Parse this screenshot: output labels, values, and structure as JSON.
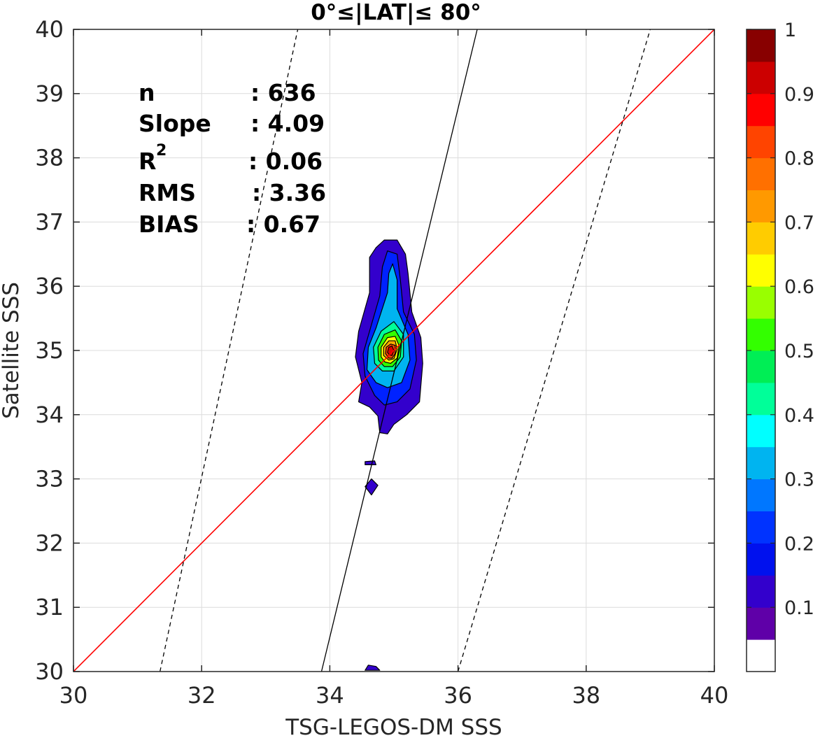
{
  "chart_data": {
    "type": "contour",
    "title": "0°≤|LAT|≤ 80°",
    "xlabel": "TSG-LEGOS-DM SSS",
    "ylabel": "Satellite SSS",
    "xlim": [
      30,
      40
    ],
    "ylim": [
      30,
      40
    ],
    "xticks": [
      "30",
      "32",
      "34",
      "36",
      "38",
      "40"
    ],
    "yticks": [
      "30",
      "31",
      "32",
      "33",
      "34",
      "35",
      "36",
      "37",
      "38",
      "39",
      "40"
    ],
    "grid": true,
    "stats": [
      {
        "label": "n",
        "value": ": 636"
      },
      {
        "label": "Slope",
        "value": ": 4.09"
      },
      {
        "label": "R",
        "sup": "2",
        "value": ": 0.06"
      },
      {
        "label": "RMS",
        "value": ": 3.36"
      },
      {
        "label": "BIAS",
        "value": ": 0.67"
      }
    ],
    "lines": [
      {
        "name": "1:1",
        "color": "#ff0000",
        "style": "solid",
        "points": [
          [
            30,
            30
          ],
          [
            40,
            40
          ]
        ]
      },
      {
        "name": "regression fit",
        "color": "#000000",
        "style": "solid",
        "points": [
          [
            33.87,
            30
          ],
          [
            36.3,
            40
          ]
        ]
      },
      {
        "name": "upper bound",
        "color": "#000000",
        "style": "dashed",
        "points": [
          [
            31.35,
            30
          ],
          [
            33.5,
            40
          ]
        ]
      },
      {
        "name": "lower bound",
        "color": "#000000",
        "style": "dashed",
        "points": [
          [
            36.0,
            30
          ],
          [
            39.0,
            40
          ]
        ]
      }
    ],
    "density_contours": [
      {
        "level": 0.1,
        "color": "#3300cc",
        "points": [
          [
            34.45,
            34.2
          ],
          [
            34.5,
            34.5
          ],
          [
            34.4,
            34.9
          ],
          [
            34.45,
            35.3
          ],
          [
            34.62,
            35.9
          ],
          [
            34.62,
            36.45
          ],
          [
            34.72,
            36.6
          ],
          [
            34.85,
            36.72
          ],
          [
            35.05,
            36.72
          ],
          [
            35.18,
            36.5
          ],
          [
            35.22,
            36.2
          ],
          [
            35.28,
            35.6
          ],
          [
            35.42,
            35.2
          ],
          [
            35.45,
            34.8
          ],
          [
            35.4,
            34.2
          ],
          [
            35.2,
            34.0
          ],
          [
            35.0,
            33.85
          ],
          [
            34.9,
            33.7
          ],
          [
            34.78,
            33.72
          ],
          [
            34.75,
            33.98
          ],
          [
            34.62,
            34.12
          ]
        ]
      },
      {
        "level": 0.1,
        "color": "#3300cc",
        "points": [
          [
            34.55,
            33.22
          ],
          [
            34.72,
            33.22
          ],
          [
            34.7,
            33.28
          ],
          [
            34.55,
            33.27
          ]
        ]
      },
      {
        "level": 0.1,
        "color": "#3300cc",
        "points": [
          [
            34.55,
            32.88
          ],
          [
            34.65,
            33.0
          ],
          [
            34.75,
            32.9
          ],
          [
            34.65,
            32.75
          ]
        ]
      },
      {
        "level": 0.1,
        "color": "#3300cc",
        "points": [
          [
            34.55,
            30.02
          ],
          [
            34.6,
            30.1
          ],
          [
            34.72,
            30.08
          ],
          [
            34.78,
            30.02
          ]
        ]
      },
      {
        "level": 0.2,
        "color": "#0022ff",
        "points": [
          [
            34.55,
            34.6
          ],
          [
            34.52,
            34.95
          ],
          [
            34.62,
            35.3
          ],
          [
            34.78,
            35.85
          ],
          [
            34.82,
            36.3
          ],
          [
            34.9,
            36.55
          ],
          [
            35.05,
            36.5
          ],
          [
            35.1,
            36.1
          ],
          [
            35.15,
            35.6
          ],
          [
            35.32,
            35.25
          ],
          [
            35.35,
            34.85
          ],
          [
            35.25,
            34.4
          ],
          [
            35.05,
            34.2
          ],
          [
            34.85,
            34.15
          ],
          [
            34.7,
            34.3
          ]
        ]
      },
      {
        "level": 0.3,
        "color": "#00b4f0",
        "points": [
          [
            34.58,
            34.7
          ],
          [
            34.6,
            35.05
          ],
          [
            34.72,
            35.35
          ],
          [
            34.9,
            35.9
          ],
          [
            34.92,
            36.2
          ],
          [
            34.98,
            36.35
          ],
          [
            35.05,
            36.1
          ],
          [
            35.05,
            35.65
          ],
          [
            35.22,
            35.25
          ],
          [
            35.25,
            34.85
          ],
          [
            35.12,
            34.5
          ],
          [
            34.9,
            34.42
          ],
          [
            34.72,
            34.5
          ]
        ]
      },
      {
        "level": 0.4,
        "color": "#00ff99",
        "points": [
          [
            34.7,
            34.8
          ],
          [
            34.68,
            35.05
          ],
          [
            34.8,
            35.3
          ],
          [
            35.0,
            35.45
          ],
          [
            35.15,
            35.25
          ],
          [
            35.15,
            34.9
          ],
          [
            35.0,
            34.68
          ],
          [
            34.82,
            34.68
          ]
        ]
      },
      {
        "level": 0.5,
        "color": "#33ff00",
        "points": [
          [
            34.76,
            34.85
          ],
          [
            34.75,
            35.05
          ],
          [
            34.85,
            35.25
          ],
          [
            35.02,
            35.32
          ],
          [
            35.12,
            35.15
          ],
          [
            35.1,
            34.9
          ],
          [
            34.98,
            34.75
          ],
          [
            34.85,
            34.75
          ]
        ]
      },
      {
        "level": 0.6,
        "color": "#ffff00",
        "points": [
          [
            34.8,
            34.9
          ],
          [
            34.8,
            35.05
          ],
          [
            34.9,
            35.2
          ],
          [
            35.02,
            35.22
          ],
          [
            35.08,
            35.08
          ],
          [
            35.05,
            34.88
          ],
          [
            34.95,
            34.8
          ],
          [
            34.86,
            34.82
          ]
        ]
      },
      {
        "level": 0.7,
        "color": "#ffaa00",
        "points": [
          [
            34.84,
            34.92
          ],
          [
            34.84,
            35.05
          ],
          [
            34.92,
            35.15
          ],
          [
            35.02,
            35.15
          ],
          [
            35.05,
            35.02
          ],
          [
            35.0,
            34.87
          ],
          [
            34.92,
            34.85
          ]
        ]
      },
      {
        "level": 0.8,
        "color": "#ff4400",
        "points": [
          [
            34.87,
            34.95
          ],
          [
            34.88,
            35.05
          ],
          [
            34.95,
            35.1
          ],
          [
            35.02,
            35.08
          ],
          [
            35.02,
            34.95
          ],
          [
            34.97,
            34.88
          ],
          [
            34.92,
            34.88
          ]
        ]
      },
      {
        "level": 0.9,
        "color": "#dd0000",
        "points": [
          [
            34.9,
            34.97
          ],
          [
            34.92,
            35.05
          ],
          [
            34.97,
            35.07
          ],
          [
            35.0,
            35.0
          ],
          [
            34.97,
            34.92
          ],
          [
            34.93,
            34.93
          ]
        ]
      }
    ],
    "colorbar": {
      "ticks": [
        "0.1",
        "0.2",
        "0.3",
        "0.4",
        "0.5",
        "0.6",
        "0.7",
        "0.8",
        "0.9",
        "1"
      ],
      "colors": [
        "#ffffff",
        "#5f00a8",
        "#3300cc",
        "#0011ee",
        "#0033ff",
        "#0077ff",
        "#00b4f0",
        "#00ffff",
        "#00ff99",
        "#00ee55",
        "#33ff00",
        "#99ff00",
        "#ffff00",
        "#ffcc00",
        "#ff9900",
        "#ff7000",
        "#ff4400",
        "#ff0000",
        "#cc0000",
        "#880000"
      ]
    }
  }
}
